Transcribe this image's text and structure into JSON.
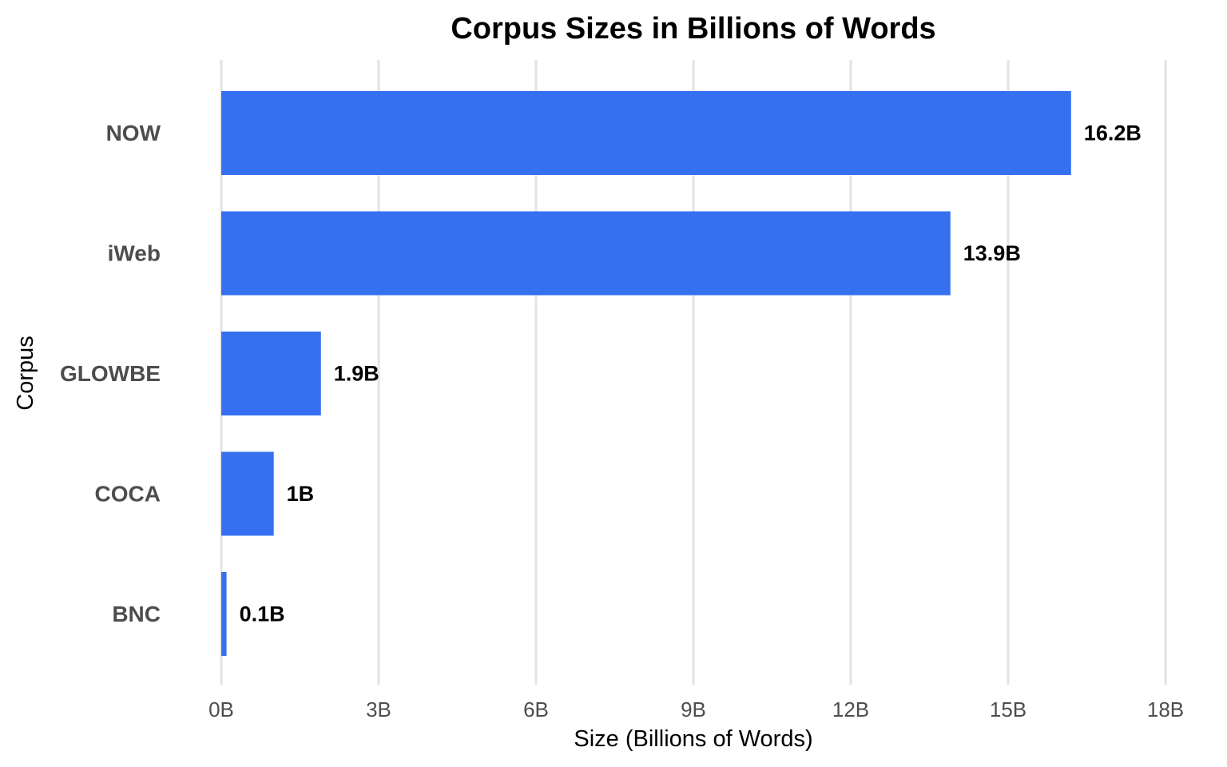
{
  "chart_data": {
    "type": "bar",
    "orientation": "horizontal",
    "title": "Corpus Sizes in Billions of Words",
    "xlabel": "Size (Billions of Words)",
    "ylabel": "Corpus",
    "categories": [
      "NOW",
      "iWeb",
      "GLOWBE",
      "COCA",
      "BNC"
    ],
    "values": [
      16.2,
      13.9,
      1.9,
      1,
      0.1
    ],
    "data_labels": [
      "16.2B",
      "13.9B",
      "1.9B",
      "1B",
      "0.1B"
    ],
    "xlim": [
      0,
      18
    ],
    "x_ticks": [
      0,
      3,
      6,
      9,
      12,
      15,
      18
    ],
    "x_tick_labels": [
      "0B",
      "3B",
      "6B",
      "9B",
      "12B",
      "15B",
      "18B"
    ],
    "grid": "vertical-major",
    "legend": "none",
    "colors": {
      "bar": "#3570F0",
      "grid": "#E3E3E3",
      "background": "#FFFFFF"
    }
  }
}
